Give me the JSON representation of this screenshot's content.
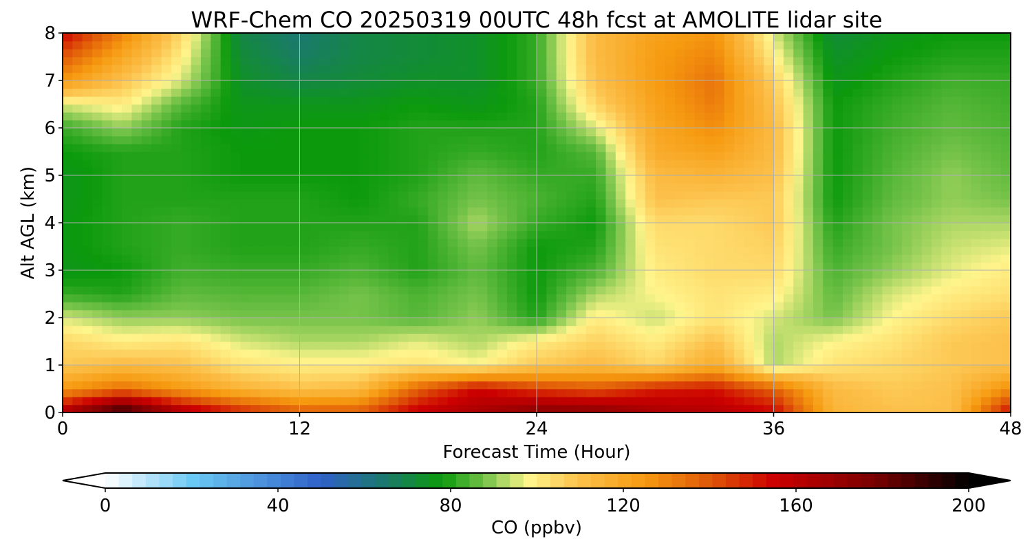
{
  "chart_data": {
    "type": "heatmap",
    "title": "WRF-Chem CO  20250319 00UTC 48h fcst at AMOLITE lidar site",
    "xlabel": "Forecast Time (Hour)",
    "ylabel": "Alt AGL (km)",
    "xlim": [
      0,
      48
    ],
    "ylim": [
      0,
      8
    ],
    "x_ticks": [
      "0",
      "12",
      "24",
      "36",
      "48"
    ],
    "y_ticks": [
      "0",
      "1",
      "2",
      "3",
      "4",
      "5",
      "6",
      "7",
      "8"
    ],
    "grid": true,
    "x": [
      0,
      3,
      6,
      9,
      12,
      15,
      18,
      21,
      24,
      27,
      30,
      33,
      36,
      39,
      42,
      45,
      48
    ],
    "y": [
      0,
      0.5,
      1,
      1.5,
      2,
      2.5,
      3,
      3.5,
      4,
      4.5,
      5,
      5.5,
      6,
      6.5,
      7,
      7.5,
      8
    ],
    "values": [
      [
        165,
        195,
        165,
        150,
        140,
        140,
        158,
        165,
        175,
        175,
        165,
        162,
        155,
        115,
        110,
        110,
        155
      ],
      [
        125,
        135,
        125,
        115,
        110,
        112,
        138,
        155,
        145,
        140,
        150,
        152,
        138,
        112,
        108,
        110,
        128
      ],
      [
        108,
        112,
        110,
        102,
        100,
        100,
        102,
        98,
        108,
        112,
        105,
        118,
        92,
        102,
        105,
        108,
        110
      ],
      [
        105,
        100,
        102,
        95,
        92,
        92,
        96,
        92,
        100,
        106,
        100,
        110,
        92,
        98,
        102,
        108,
        110
      ],
      [
        95,
        90,
        90,
        88,
        88,
        88,
        85,
        90,
        80,
        100,
        94,
        102,
        95,
        88,
        98,
        104,
        108
      ],
      [
        82,
        80,
        86,
        85,
        85,
        88,
        84,
        88,
        78,
        92,
        98,
        102,
        100,
        86,
        95,
        100,
        103
      ],
      [
        76,
        78,
        83,
        82,
        82,
        84,
        80,
        86,
        78,
        84,
        100,
        104,
        104,
        84,
        90,
        96,
        100
      ],
      [
        77,
        80,
        82,
        80,
        80,
        82,
        80,
        88,
        78,
        80,
        102,
        104,
        106,
        82,
        88,
        94,
        96
      ],
      [
        77,
        80,
        82,
        80,
        80,
        80,
        80,
        92,
        82,
        78,
        104,
        104,
        108,
        80,
        88,
        92,
        92
      ],
      [
        76,
        80,
        80,
        80,
        80,
        78,
        82,
        88,
        84,
        80,
        110,
        108,
        108,
        78,
        86,
        90,
        88
      ],
      [
        76,
        80,
        80,
        78,
        78,
        78,
        80,
        86,
        82,
        82,
        112,
        115,
        110,
        78,
        85,
        90,
        86
      ],
      [
        78,
        80,
        80,
        78,
        78,
        78,
        80,
        82,
        80,
        85,
        118,
        122,
        112,
        78,
        84,
        88,
        85
      ],
      [
        82,
        90,
        80,
        77,
        78,
        78,
        80,
        80,
        80,
        95,
        120,
        128,
        112,
        78,
        83,
        86,
        84
      ],
      [
        95,
        100,
        85,
        76,
        76,
        76,
        78,
        76,
        80,
        105,
        122,
        132,
        110,
        78,
        82,
        85,
        83
      ],
      [
        125,
        110,
        95,
        74,
        70,
        72,
        74,
        74,
        82,
        110,
        124,
        134,
        106,
        76,
        80,
        83,
        82
      ],
      [
        140,
        120,
        100,
        72,
        66,
        70,
        72,
        74,
        82,
        112,
        124,
        130,
        100,
        74,
        78,
        80,
        80
      ],
      [
        155,
        130,
        105,
        70,
        64,
        70,
        72,
        74,
        82,
        112,
        122,
        126,
        95,
        72,
        76,
        78,
        78
      ]
    ],
    "colorbar": {
      "label": "CO  (ppbv)",
      "min": 0,
      "max": 200,
      "ticks": [
        "0",
        "40",
        "80",
        "120",
        "160",
        "200"
      ],
      "extend": "both",
      "stops": [
        {
          "v": 0,
          "c": "#ffffff"
        },
        {
          "v": 20,
          "c": "#6ccaf5"
        },
        {
          "v": 50,
          "c": "#2f60c8"
        },
        {
          "v": 65,
          "c": "#1a7a6a"
        },
        {
          "v": 78,
          "c": "#0c9a0c"
        },
        {
          "v": 88,
          "c": "#76c34a"
        },
        {
          "v": 98,
          "c": "#fff58c"
        },
        {
          "v": 110,
          "c": "#fcc04a"
        },
        {
          "v": 125,
          "c": "#f69a10"
        },
        {
          "v": 140,
          "c": "#e05808"
        },
        {
          "v": 155,
          "c": "#cc0000"
        },
        {
          "v": 178,
          "c": "#7a0000"
        },
        {
          "v": 200,
          "c": "#000000"
        }
      ]
    }
  }
}
